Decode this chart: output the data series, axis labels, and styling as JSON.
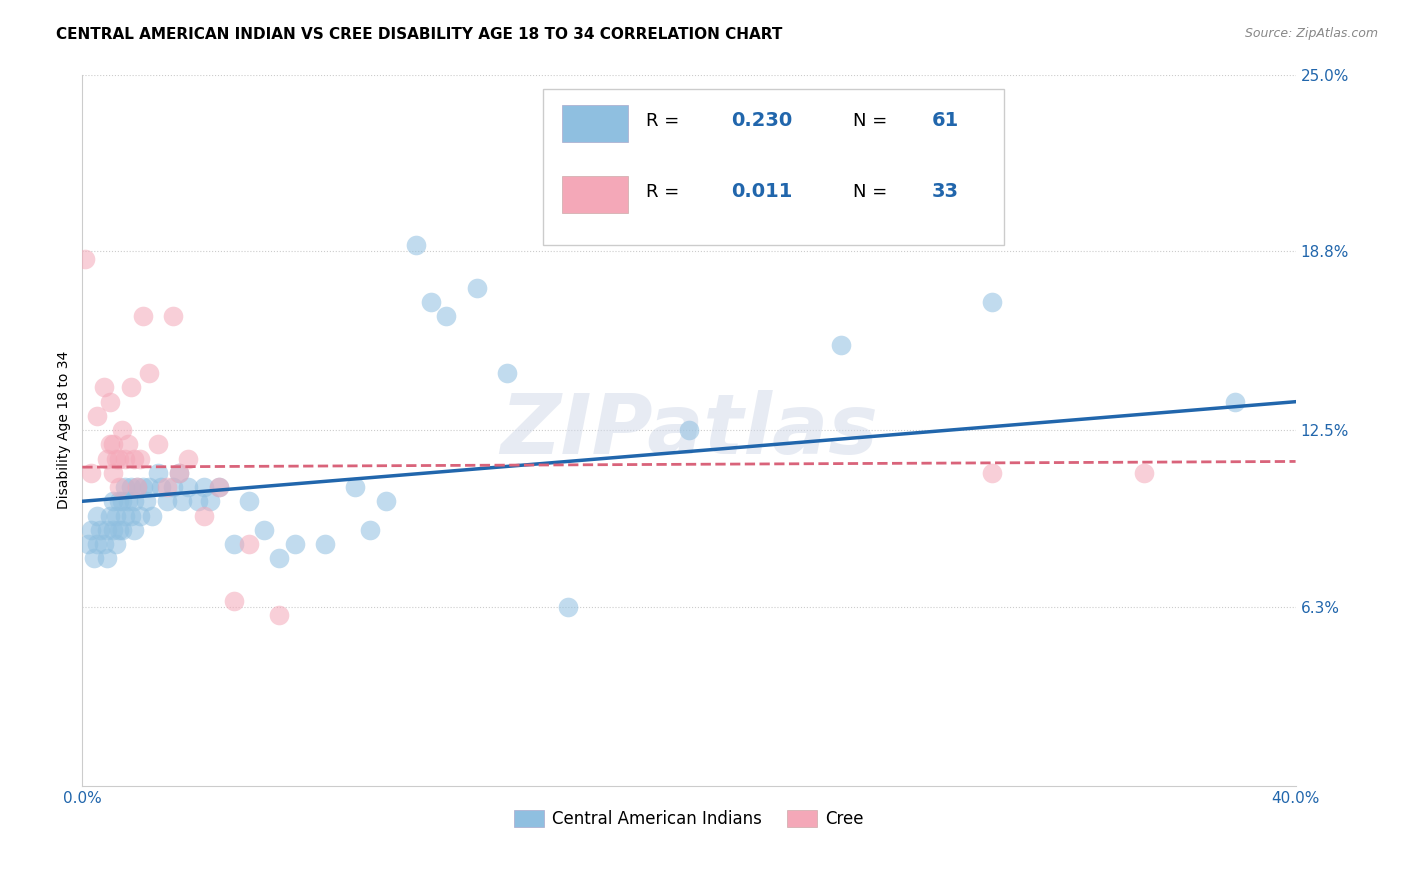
{
  "title": "CENTRAL AMERICAN INDIAN VS CREE DISABILITY AGE 18 TO 34 CORRELATION CHART",
  "source": "Source: ZipAtlas.com",
  "ylabel": "Disability Age 18 to 34",
  "xlim": [
    0.0,
    0.4
  ],
  "ylim": [
    0.0,
    0.25
  ],
  "xticks": [
    0.0,
    0.4
  ],
  "xticklabels": [
    "0.0%",
    "40.0%"
  ],
  "yticks": [
    0.063,
    0.125,
    0.188,
    0.25
  ],
  "yticklabels": [
    "6.3%",
    "12.5%",
    "18.8%",
    "25.0%"
  ],
  "grid_yticks": [
    0.063,
    0.125,
    0.188,
    0.25
  ],
  "watermark": "ZIPatlas",
  "color_blue": "#8fbfe0",
  "color_pink": "#f4a8b8",
  "color_blue_line": "#2166ac",
  "color_pink_line": "#d9637a",
  "blue_scatter_x": [
    0.002,
    0.003,
    0.004,
    0.005,
    0.005,
    0.006,
    0.007,
    0.008,
    0.008,
    0.009,
    0.01,
    0.01,
    0.011,
    0.011,
    0.012,
    0.012,
    0.013,
    0.013,
    0.014,
    0.014,
    0.015,
    0.016,
    0.016,
    0.017,
    0.017,
    0.018,
    0.019,
    0.02,
    0.021,
    0.022,
    0.023,
    0.025,
    0.026,
    0.028,
    0.03,
    0.032,
    0.033,
    0.035,
    0.038,
    0.04,
    0.042,
    0.045,
    0.05,
    0.055,
    0.06,
    0.065,
    0.07,
    0.08,
    0.09,
    0.095,
    0.1,
    0.11,
    0.115,
    0.12,
    0.13,
    0.14,
    0.16,
    0.2,
    0.25,
    0.3,
    0.38
  ],
  "blue_scatter_y": [
    0.085,
    0.09,
    0.08,
    0.095,
    0.085,
    0.09,
    0.085,
    0.09,
    0.08,
    0.095,
    0.1,
    0.09,
    0.095,
    0.085,
    0.1,
    0.09,
    0.1,
    0.09,
    0.105,
    0.095,
    0.1,
    0.105,
    0.095,
    0.1,
    0.09,
    0.105,
    0.095,
    0.105,
    0.1,
    0.105,
    0.095,
    0.11,
    0.105,
    0.1,
    0.105,
    0.11,
    0.1,
    0.105,
    0.1,
    0.105,
    0.1,
    0.105,
    0.085,
    0.1,
    0.09,
    0.08,
    0.085,
    0.085,
    0.105,
    0.09,
    0.1,
    0.19,
    0.17,
    0.165,
    0.175,
    0.145,
    0.063,
    0.125,
    0.155,
    0.17,
    0.135
  ],
  "pink_scatter_x": [
    0.001,
    0.003,
    0.005,
    0.007,
    0.008,
    0.009,
    0.009,
    0.01,
    0.01,
    0.011,
    0.012,
    0.012,
    0.013,
    0.014,
    0.015,
    0.016,
    0.017,
    0.018,
    0.019,
    0.02,
    0.022,
    0.025,
    0.028,
    0.03,
    0.032,
    0.035,
    0.04,
    0.045,
    0.05,
    0.055,
    0.065,
    0.3,
    0.35
  ],
  "pink_scatter_y": [
    0.185,
    0.11,
    0.13,
    0.14,
    0.115,
    0.135,
    0.12,
    0.12,
    0.11,
    0.115,
    0.115,
    0.105,
    0.125,
    0.115,
    0.12,
    0.14,
    0.115,
    0.105,
    0.115,
    0.165,
    0.145,
    0.12,
    0.105,
    0.165,
    0.11,
    0.115,
    0.095,
    0.105,
    0.065,
    0.085,
    0.06,
    0.11,
    0.11
  ],
  "blue_line_x": [
    0.0,
    0.4
  ],
  "blue_line_y": [
    0.1,
    0.135
  ],
  "pink_line_x": [
    0.0,
    0.4
  ],
  "pink_line_y": [
    0.112,
    0.114
  ],
  "title_fontsize": 11,
  "axis_fontsize": 10,
  "tick_fontsize": 11,
  "source_fontsize": 9,
  "legend_r1_val": "0.230",
  "legend_n1_val": "61",
  "legend_r2_val": "0.011",
  "legend_n2_val": "33"
}
